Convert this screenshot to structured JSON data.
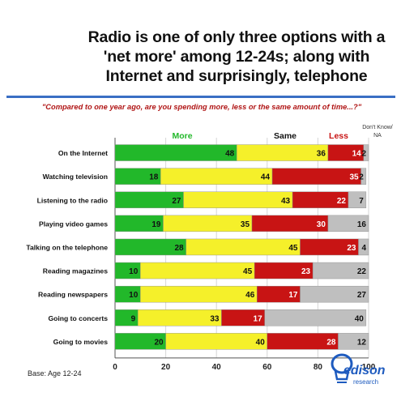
{
  "title_lines": [
    "Radio is one of only three options with a",
    "'net more' among 12-24s; along with",
    "Internet and surprisingly, telephone"
  ],
  "question": "\"Compared to one year ago, are you spending more, less or the same amount of time...?\"",
  "base": "Base: Age 12-24",
  "logo": {
    "word": "edison",
    "sub": "research"
  },
  "colors": {
    "more": "#22b82a",
    "same": "#f5f02a",
    "less": "#c81414",
    "dk": "#bfbfbf",
    "accent_rule": "#3a6fc4"
  },
  "chart_data": {
    "type": "bar",
    "orientation": "horizontal-stacked",
    "categories": [
      "On the Internet",
      "Watching television",
      "Listening to the radio",
      "Playing video games",
      "Talking on the telephone",
      "Reading magazines",
      "Reading newspapers",
      "Going to concerts",
      "Going to movies"
    ],
    "series": [
      {
        "name": "More",
        "color": "#22b82a",
        "values": [
          48,
          18,
          27,
          19,
          28,
          10,
          10,
          9,
          20
        ]
      },
      {
        "name": "Same",
        "color": "#f5f02a",
        "values": [
          36,
          44,
          43,
          35,
          45,
          45,
          46,
          33,
          40
        ]
      },
      {
        "name": "Less",
        "color": "#c81414",
        "values": [
          14,
          35,
          22,
          30,
          23,
          23,
          17,
          17,
          28
        ]
      },
      {
        "name": "Don't Know/ NA",
        "color": "#bfbfbf",
        "values": [
          2,
          2,
          7,
          16,
          4,
          22,
          27,
          40,
          12
        ]
      }
    ],
    "legend_labels": [
      "More",
      "Same",
      "Less",
      "Don't Know/",
      "NA"
    ],
    "xlim": [
      0,
      100
    ],
    "xticks": [
      0,
      20,
      40,
      60,
      80,
      100
    ],
    "gridlines": true
  }
}
